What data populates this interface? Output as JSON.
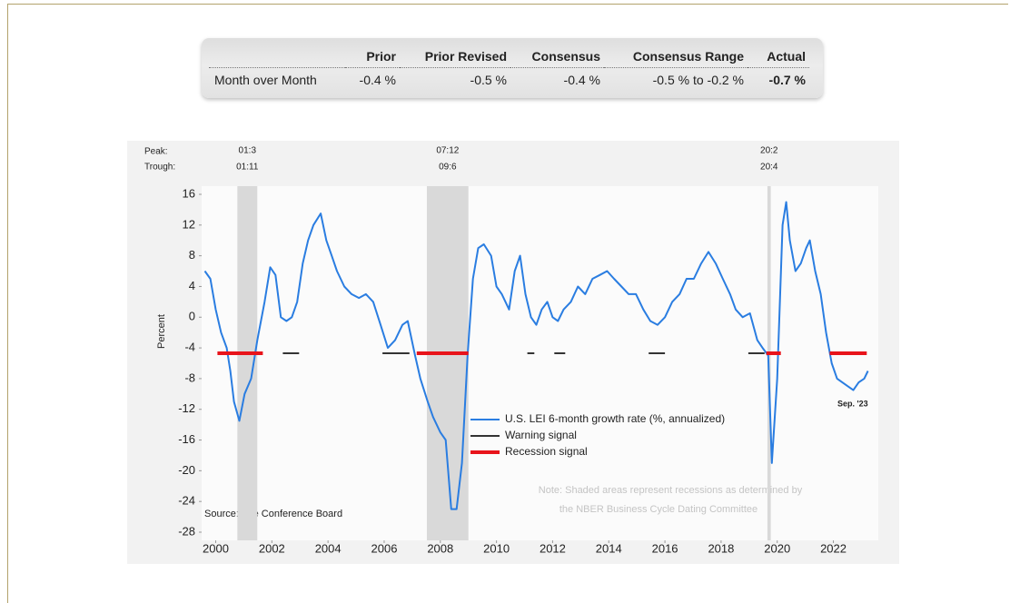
{
  "table": {
    "headers": [
      "Prior",
      "Prior Revised",
      "Consensus",
      "Consensus Range",
      "Actual"
    ],
    "rows": [
      {
        "label": "Month over Month",
        "cells": [
          "-0.4 %",
          "-0.5 %",
          "-0.4 %",
          "-0.5 % to -0.2 %",
          "-0.7 %"
        ]
      }
    ]
  },
  "chart_data": {
    "type": "line",
    "y_label": "Percent",
    "xlim": [
      1999.55,
      2023.6
    ],
    "xticks": [
      2000,
      2002,
      2004,
      2006,
      2008,
      2010,
      2012,
      2014,
      2016,
      2018,
      2020,
      2022
    ],
    "ylim": [
      -28,
      16
    ],
    "yticks": [
      16,
      12,
      8,
      4,
      0,
      -4,
      -8,
      -12,
      -16,
      -20,
      -24,
      -28
    ],
    "peak_label": "Peak:",
    "trough_label": "Trough:",
    "recessions": [
      {
        "peak": "01:3",
        "trough": "01:11",
        "x0": 2000.77,
        "x1": 2001.48
      },
      {
        "peak": "07:12",
        "trough": "09:6",
        "x0": 2007.52,
        "x1": 2009.0
      },
      {
        "peak": "20:2",
        "trough": "20:4",
        "x0": 2019.65,
        "x1": 2019.77
      }
    ],
    "series": [
      {
        "name": "U.S. LEI 6-month growth rate (%, annualized)",
        "color": "#2a7de1",
        "x": [
          1999.61,
          1999.81,
          2000.0,
          2000.19,
          2000.39,
          2000.52,
          2000.65,
          2000.84,
          2001.03,
          2001.26,
          2001.48,
          2001.74,
          2001.94,
          2002.13,
          2002.32,
          2002.52,
          2002.71,
          2002.9,
          2003.1,
          2003.29,
          2003.48,
          2003.74,
          2003.94,
          2004.13,
          2004.32,
          2004.58,
          2004.84,
          2005.1,
          2005.35,
          2005.61,
          2005.87,
          2006.13,
          2006.39,
          2006.65,
          2006.84,
          2007.1,
          2007.29,
          2007.55,
          2007.74,
          2008.0,
          2008.19,
          2008.39,
          2008.58,
          2008.77,
          2008.97,
          2009.16,
          2009.35,
          2009.55,
          2009.81,
          2010.0,
          2010.19,
          2010.45,
          2010.65,
          2010.84,
          2011.03,
          2011.23,
          2011.42,
          2011.61,
          2011.81,
          2012.0,
          2012.19,
          2012.39,
          2012.65,
          2012.9,
          2013.16,
          2013.42,
          2013.68,
          2013.94,
          2014.19,
          2014.45,
          2014.71,
          2014.97,
          2015.23,
          2015.48,
          2015.74,
          2016.0,
          2016.26,
          2016.52,
          2016.77,
          2017.03,
          2017.29,
          2017.55,
          2017.81,
          2018.06,
          2018.32,
          2018.52,
          2018.77,
          2019.03,
          2019.29,
          2019.48,
          2019.68,
          2019.81,
          2020.0,
          2020.19,
          2020.32,
          2020.45,
          2020.65,
          2020.84,
          2021.03,
          2021.16,
          2021.35,
          2021.55,
          2021.74,
          2021.94,
          2022.13,
          2022.32,
          2022.52,
          2022.71,
          2022.9,
          2023.1,
          2023.23
        ],
        "values": [
          6,
          5,
          1,
          -2,
          -4,
          -7,
          -11,
          -13.5,
          -10,
          -8,
          -3,
          2,
          6.5,
          5.5,
          0,
          -0.5,
          0,
          2,
          7,
          10,
          12,
          13.5,
          10,
          8,
          6,
          4,
          3,
          2.5,
          3,
          2,
          -1,
          -4,
          -3,
          -1,
          -0.5,
          -5,
          -8,
          -11,
          -13,
          -15,
          -16,
          -25,
          -25,
          -19,
          -5,
          5,
          9,
          9.5,
          8,
          4,
          3,
          1,
          6,
          8,
          3,
          0,
          -1,
          1,
          2,
          0,
          -0.5,
          1,
          2,
          4,
          3,
          5,
          5.5,
          6,
          5,
          4,
          3,
          3,
          1,
          -0.5,
          -1,
          0,
          2,
          3,
          5,
          5,
          7,
          8.5,
          7,
          5,
          3,
          1,
          0,
          0.5,
          -3,
          -4,
          -5,
          -19,
          -8,
          12,
          15,
          10,
          6,
          7,
          9,
          10,
          6,
          3,
          -2,
          -6,
          -8,
          -8.5,
          -9,
          -9.5,
          -8.5,
          -8,
          -7
        ]
      },
      {
        "name": "Warning signal",
        "color": "#333333",
        "x": [
          2002.39,
          2002.97,
          null,
          2005.94,
          2006.9,
          null,
          2011.1,
          2011.35,
          null,
          2012.06,
          2012.45,
          null,
          2015.42,
          2016.0,
          null,
          2018.97,
          2019.55
        ],
        "values": [
          -4.7,
          -4.7,
          null,
          -4.7,
          -4.7,
          null,
          -4.7,
          -4.7,
          null,
          -4.7,
          -4.7,
          null,
          -4.7,
          -4.7,
          null,
          -4.7,
          -4.7
        ]
      },
      {
        "name": "Recession signal",
        "color": "#e8141b",
        "x": [
          2000.06,
          2001.68,
          null,
          2007.16,
          2009.0,
          null,
          2019.61,
          2020.13,
          null,
          2021.87,
          2023.19
        ],
        "values": [
          -4.7,
          -4.7,
          null,
          -4.7,
          -4.7,
          null,
          -4.7,
          -4.7,
          null,
          -4.7,
          -4.7
        ]
      }
    ],
    "end_label": "Sep. '23",
    "source": "Source: The Conference Board",
    "note": [
      "Note: Shaded areas represent recessions as determined by",
      "the NBER Business Cycle Dating Committee"
    ]
  }
}
